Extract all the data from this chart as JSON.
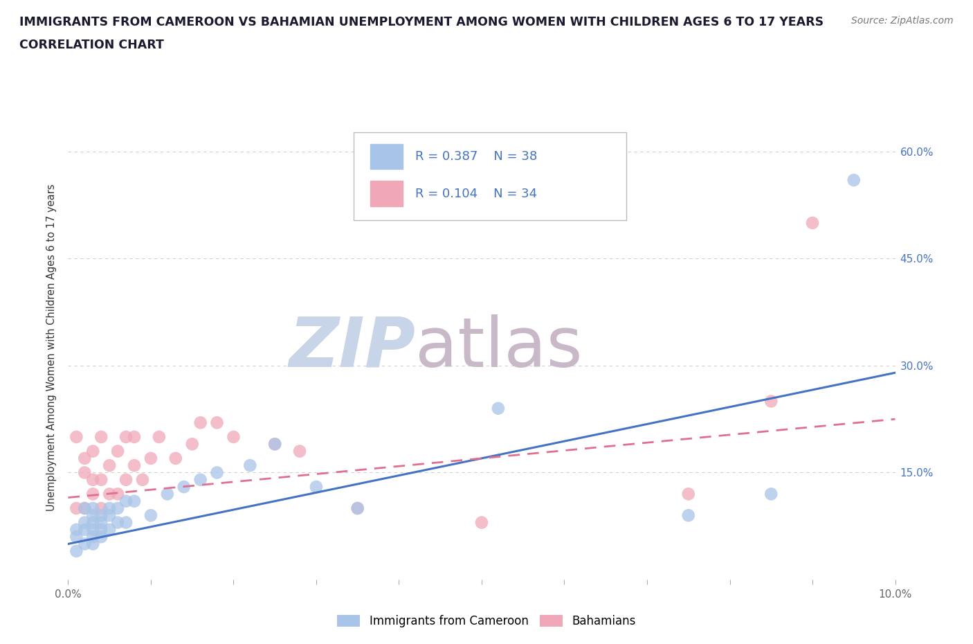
{
  "title_line1": "IMMIGRANTS FROM CAMEROON VS BAHAMIAN UNEMPLOYMENT AMONG WOMEN WITH CHILDREN AGES 6 TO 17 YEARS",
  "title_line2": "CORRELATION CHART",
  "source_text": "Source: ZipAtlas.com",
  "ylabel": "Unemployment Among Women with Children Ages 6 to 17 years",
  "xlim": [
    0.0,
    0.1
  ],
  "ylim": [
    0.0,
    0.65
  ],
  "xticks": [
    0.0,
    0.01,
    0.02,
    0.03,
    0.04,
    0.05,
    0.06,
    0.07,
    0.08,
    0.09,
    0.1
  ],
  "xticklabels": [
    "0.0%",
    "",
    "",
    "",
    "",
    "",
    "",
    "",
    "",
    "",
    "10.0%"
  ],
  "yticks": [
    0.0,
    0.15,
    0.3,
    0.45,
    0.6
  ],
  "right_yticklabels": [
    "",
    "15.0%",
    "30.0%",
    "45.0%",
    "60.0%"
  ],
  "grid_color": "#d0d0d0",
  "background_color": "#ffffff",
  "watermark_zip": "ZIP",
  "watermark_atlas": "atlas",
  "watermark_color_zip": "#c8d4e8",
  "watermark_color_atlas": "#c8b8c8",
  "blue_color": "#a8c4e8",
  "pink_color": "#f0a8b8",
  "blue_line_color": "#4472c4",
  "pink_line_color": "#e07090",
  "blue_intercept": 0.05,
  "blue_slope": 2.4,
  "pink_intercept": 0.115,
  "pink_slope": 1.1,
  "blue_scatter_x": [
    0.001,
    0.001,
    0.001,
    0.002,
    0.002,
    0.002,
    0.002,
    0.003,
    0.003,
    0.003,
    0.003,
    0.003,
    0.003,
    0.004,
    0.004,
    0.004,
    0.004,
    0.005,
    0.005,
    0.005,
    0.006,
    0.006,
    0.007,
    0.007,
    0.008,
    0.01,
    0.012,
    0.014,
    0.016,
    0.018,
    0.022,
    0.025,
    0.03,
    0.035,
    0.052,
    0.075,
    0.085,
    0.095
  ],
  "blue_scatter_y": [
    0.04,
    0.06,
    0.07,
    0.05,
    0.07,
    0.08,
    0.1,
    0.05,
    0.06,
    0.07,
    0.08,
    0.09,
    0.1,
    0.06,
    0.07,
    0.08,
    0.09,
    0.07,
    0.09,
    0.1,
    0.08,
    0.1,
    0.08,
    0.11,
    0.11,
    0.09,
    0.12,
    0.13,
    0.14,
    0.15,
    0.16,
    0.19,
    0.13,
    0.1,
    0.24,
    0.09,
    0.12,
    0.56
  ],
  "pink_scatter_x": [
    0.001,
    0.001,
    0.002,
    0.002,
    0.002,
    0.003,
    0.003,
    0.003,
    0.004,
    0.004,
    0.004,
    0.005,
    0.005,
    0.006,
    0.006,
    0.007,
    0.007,
    0.008,
    0.008,
    0.009,
    0.01,
    0.011,
    0.013,
    0.015,
    0.016,
    0.018,
    0.02,
    0.025,
    0.028,
    0.035,
    0.05,
    0.075,
    0.085,
    0.09
  ],
  "pink_scatter_y": [
    0.1,
    0.2,
    0.1,
    0.15,
    0.17,
    0.12,
    0.14,
    0.18,
    0.1,
    0.14,
    0.2,
    0.12,
    0.16,
    0.12,
    0.18,
    0.14,
    0.2,
    0.16,
    0.2,
    0.14,
    0.17,
    0.2,
    0.17,
    0.19,
    0.22,
    0.22,
    0.2,
    0.19,
    0.18,
    0.1,
    0.08,
    0.12,
    0.25,
    0.5
  ]
}
